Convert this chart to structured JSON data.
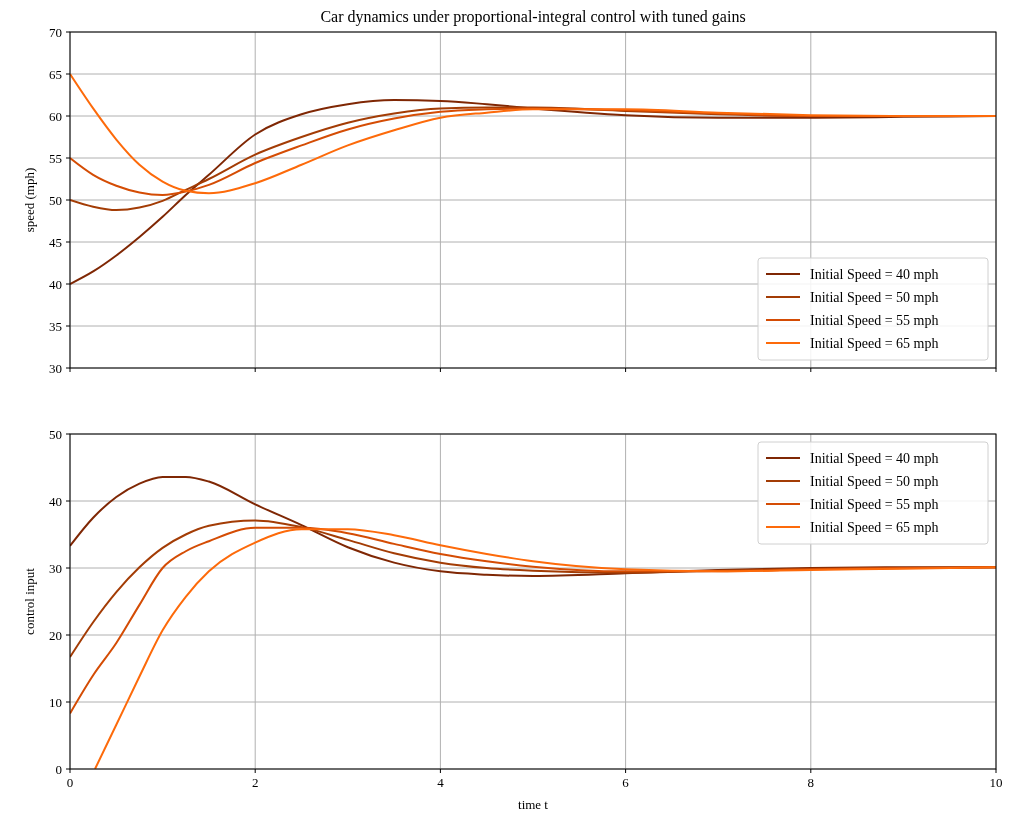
{
  "chart_data": [
    {
      "type": "line",
      "title": "Car dynamics under proportional-integral control with tuned gains",
      "ylabel": "speed (mph)",
      "x": [
        0,
        0.25,
        0.5,
        0.75,
        1,
        1.25,
        1.5,
        2,
        2.5,
        3,
        3.5,
        4,
        4.5,
        5,
        6,
        7,
        8,
        9,
        10
      ],
      "xlim": [
        0,
        10
      ],
      "xticks": [
        0,
        2,
        4,
        6,
        8,
        10
      ],
      "ylim": [
        30,
        70
      ],
      "yticks": [
        30,
        35,
        40,
        45,
        50,
        55,
        60,
        65,
        70
      ],
      "grid": true,
      "legend": "bottom right",
      "tick_labels": "y",
      "series": [
        {
          "name": "Initial Speed = 40 mph",
          "color": "#7f2704",
          "values": [
            40,
            41.5,
            43.4,
            45.6,
            48,
            50.6,
            53,
            57.8,
            60.2,
            61.4,
            61.9,
            61.8,
            61.4,
            60.9,
            60.1,
            59.8,
            59.8,
            59.9,
            60
          ]
        },
        {
          "name": "Initial Speed = 50 mph",
          "color": "#a33c05",
          "values": [
            50,
            49.2,
            48.8,
            49.1,
            49.9,
            51.2,
            52.5,
            55.4,
            57.5,
            59.2,
            60.3,
            60.9,
            61,
            61,
            60.6,
            60.2,
            60,
            60,
            60
          ]
        },
        {
          "name": "Initial Speed = 55 mph",
          "color": "#d44c04",
          "values": [
            55,
            53,
            51.7,
            50.9,
            50.6,
            51,
            51.8,
            54.4,
            56.5,
            58.4,
            59.7,
            60.5,
            60.8,
            60.9,
            60.7,
            60.3,
            60,
            60,
            60
          ]
        },
        {
          "name": "Initial Speed = 65 mph",
          "color": "#fd6a0a",
          "values": [
            65,
            60.9,
            57.2,
            54.2,
            52.2,
            51.1,
            50.8,
            52,
            54.2,
            56.5,
            58.3,
            59.8,
            60.4,
            60.8,
            60.8,
            60.4,
            60.1,
            60,
            60
          ]
        }
      ]
    },
    {
      "type": "line",
      "xlabel": "time t",
      "ylabel": "control input",
      "x": [
        0,
        0.25,
        0.5,
        0.75,
        1,
        1.25,
        1.5,
        2,
        2.5,
        3,
        3.5,
        4,
        4.5,
        5,
        6,
        7,
        8,
        9,
        10
      ],
      "xlim": [
        0,
        10
      ],
      "xticks": [
        0,
        2,
        4,
        6,
        8,
        10
      ],
      "ylim": [
        0,
        50
      ],
      "yticks": [
        0,
        10,
        20,
        30,
        40,
        50
      ],
      "grid": true,
      "legend": "top right",
      "series": [
        {
          "name": "Initial Speed = 40 mph",
          "color": "#7f2704",
          "values": [
            33.3,
            37.5,
            40.6,
            42.6,
            43.6,
            43.6,
            42.9,
            39.5,
            36.4,
            33.1,
            30.8,
            29.5,
            29,
            28.8,
            29.2,
            29.7,
            30,
            30.1,
            30.1
          ]
        },
        {
          "name": "Initial Speed = 50 mph",
          "color": "#a33c05",
          "values": [
            16.7,
            21.9,
            26.4,
            30.1,
            33,
            35,
            36.3,
            37.1,
            36.1,
            34.2,
            32.2,
            30.8,
            30,
            29.6,
            29.3,
            29.6,
            29.9,
            30,
            30.1
          ]
        },
        {
          "name": "Initial Speed = 55 mph",
          "color": "#d44c04",
          "values": [
            8.3,
            14,
            18.8,
            24.5,
            30,
            32.5,
            34,
            36,
            36,
            35.2,
            33.6,
            32.1,
            31,
            30.2,
            29.5,
            29.5,
            29.8,
            30,
            30.1
          ]
        },
        {
          "name": "Initial Speed = 65 mph",
          "color": "#fd6a0a",
          "x": [
            0.27,
            0.5,
            0.75,
            1,
            1.25,
            1.5,
            2,
            2.5,
            3,
            3.5,
            4,
            4.5,
            5,
            6,
            7,
            8,
            9,
            10
          ],
          "values": [
            0,
            6.6,
            13.8,
            20.7,
            25.7,
            29.5,
            33.8,
            35.8,
            35.8,
            34.9,
            33.4,
            32.1,
            31,
            29.8,
            29.5,
            29.7,
            29.9,
            30.1
          ]
        }
      ]
    }
  ]
}
